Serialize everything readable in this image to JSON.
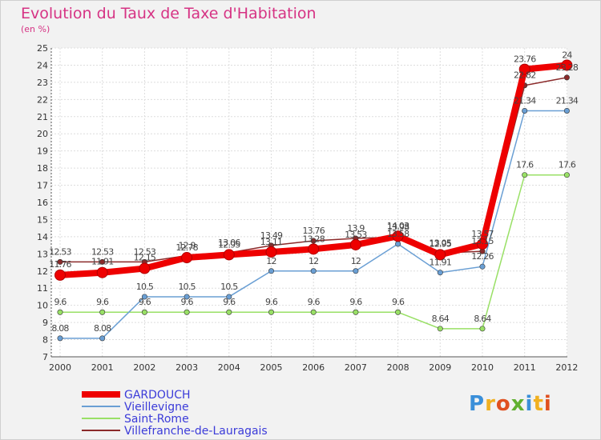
{
  "header": {
    "title": "Evolution du Taux de Taxe d'Habitation",
    "subtitle": "(en %)"
  },
  "chart_data": {
    "type": "line",
    "title": "Evolution du Taux de Taxe d'Habitation",
    "ylabel": "(en %)",
    "xlabel": "",
    "categories": [
      "2000",
      "2001",
      "2002",
      "2003",
      "2004",
      "2005",
      "2006",
      "2007",
      "2008",
      "2009",
      "2010",
      "2011",
      "2012"
    ],
    "ylim": [
      7,
      25
    ],
    "yticks": [
      7,
      8,
      9,
      10,
      11,
      12,
      13,
      14,
      15,
      16,
      17,
      18,
      19,
      20,
      21,
      22,
      23,
      24,
      25
    ],
    "legend": "bottom-left",
    "series": [
      {
        "name": "GARDOUCH",
        "color": "#ee0000",
        "values": [
          11.76,
          11.91,
          12.15,
          12.78,
          12.95,
          13.11,
          13.28,
          13.53,
          14.03,
          12.95,
          13.57,
          23.76,
          24
        ]
      },
      {
        "name": "Vieillevigne",
        "color": "#6a9fd4",
        "values": [
          8.08,
          8.08,
          10.5,
          10.5,
          10.5,
          12,
          12,
          12,
          13.58,
          11.91,
          12.26,
          21.34,
          21.34
        ]
      },
      {
        "name": "Saint-Rome",
        "color": "#99e066",
        "values": [
          9.6,
          9.6,
          9.6,
          9.6,
          9.6,
          9.6,
          9.6,
          9.6,
          9.6,
          8.64,
          8.64,
          17.6,
          17.6
        ]
      },
      {
        "name": "Villefranche-de-Lauragais",
        "color": "#8b2a2a",
        "values": [
          12.53,
          12.53,
          12.53,
          12.9,
          13.06,
          13.49,
          13.76,
          13.9,
          13.98,
          13.05,
          13.15,
          22.82,
          23.28
        ]
      }
    ],
    "data_labels": [
      {
        "series": "GARDOUCH",
        "labels": [
          "11.76",
          "11.91",
          "12.15",
          "12.78",
          "12.95",
          "13.11",
          "13.28",
          "13.53",
          "14.03",
          "12.95",
          "13.57",
          "23.76",
          "24"
        ]
      },
      {
        "series": "Vieillevigne",
        "labels": [
          "8.08",
          "8.08",
          "10.5",
          "10.5",
          "10.5",
          "12",
          "12",
          "12",
          "13.58",
          "11.91",
          "12.26",
          "21.34",
          "21.34"
        ]
      },
      {
        "series": "Saint-Rome",
        "labels": [
          "9.6",
          "9.6",
          "9.6",
          "9.6",
          "9.6",
          "9.6",
          "9.6",
          "9.6",
          "9.6",
          "8.64",
          "8.64",
          "17.6",
          "17.6"
        ]
      },
      {
        "series": "Villefranche-de-Lauragais",
        "labels": [
          "12.53",
          "12.53",
          "12.53",
          "12.9",
          "13.06",
          "13.49",
          "13.76",
          "13.9",
          "13.98",
          "13.05",
          "13.15",
          "22.82",
          "23.28"
        ]
      }
    ]
  },
  "logo": {
    "text": "Proxiti",
    "letters": [
      "P",
      "r",
      "o",
      "x",
      "i",
      "t",
      "i"
    ],
    "colors": [
      "#3a8fd9",
      "#f0b020",
      "#e05020",
      "#60b030",
      "#3a8fd9",
      "#f0b020",
      "#e05020"
    ]
  }
}
